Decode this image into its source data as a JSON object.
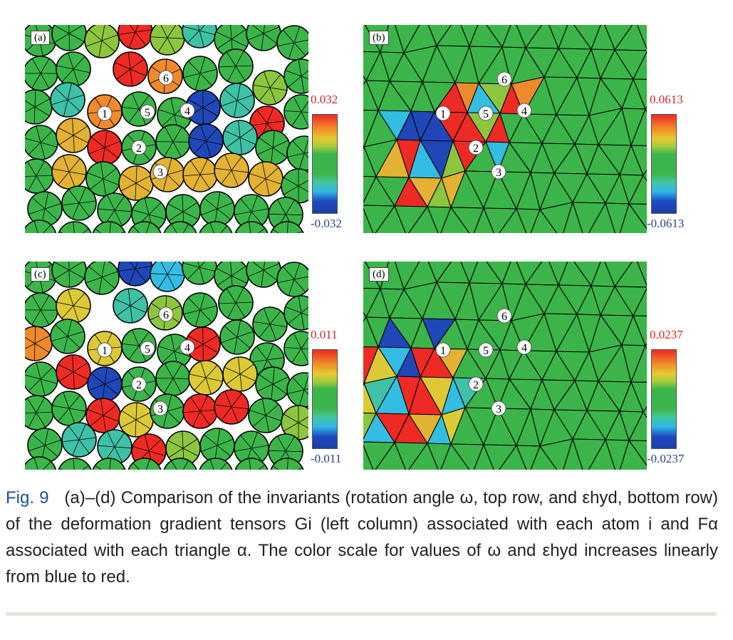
{
  "panels": [
    {
      "label": "(a)",
      "cmax": "0.032",
      "cmin": "-0.032"
    },
    {
      "label": "(b)",
      "cmax": "0.0613",
      "cmin": "-0.0613"
    },
    {
      "label": "(c)",
      "cmax": "0.011",
      "cmin": "-0.011"
    },
    {
      "label": "(d)",
      "cmax": "0.0237",
      "cmin": "-0.0237"
    }
  ],
  "atoms": [
    "1",
    "2",
    "3",
    "4",
    "5",
    "6"
  ],
  "caption": {
    "fig": "Fig. 9",
    "text": "(a)–(d) Comparison of the invariants (rotation angle ω, top row, and εhyd, bottom row) of the deformation gradient tensors Gi (left column) associated with each atom i and Fα associated with each triangle α. The color scale for values of ω and εhyd increases linearly from blue to red."
  },
  "colors": {
    "red": "#ee2a24",
    "orange": "#ef8a2c",
    "yellow": "#dcc935",
    "amber": "#e3b233",
    "lime": "#8cc63f",
    "green": "#3bb54a",
    "teal": "#3fc1a6",
    "cyan": "#33bde3",
    "blue": "#1f47b8",
    "fig_label": "#1a4f9a"
  }
}
